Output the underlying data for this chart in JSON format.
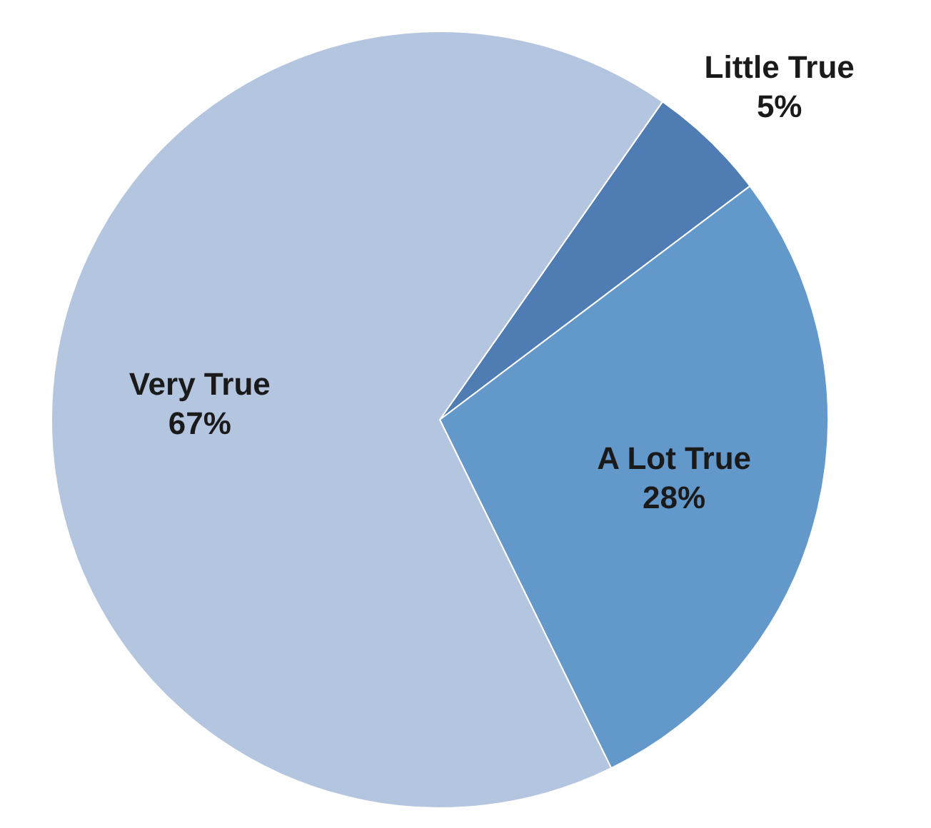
{
  "chart_data": {
    "type": "pie",
    "categories": [
      "Little True",
      "A Lot True",
      "Very True"
    ],
    "values": [
      5,
      28,
      67
    ],
    "value_labels": [
      "5%",
      "28%",
      "67%"
    ],
    "colors": [
      "#4f7db3",
      "#6398cb",
      "#b4c5e0"
    ]
  }
}
